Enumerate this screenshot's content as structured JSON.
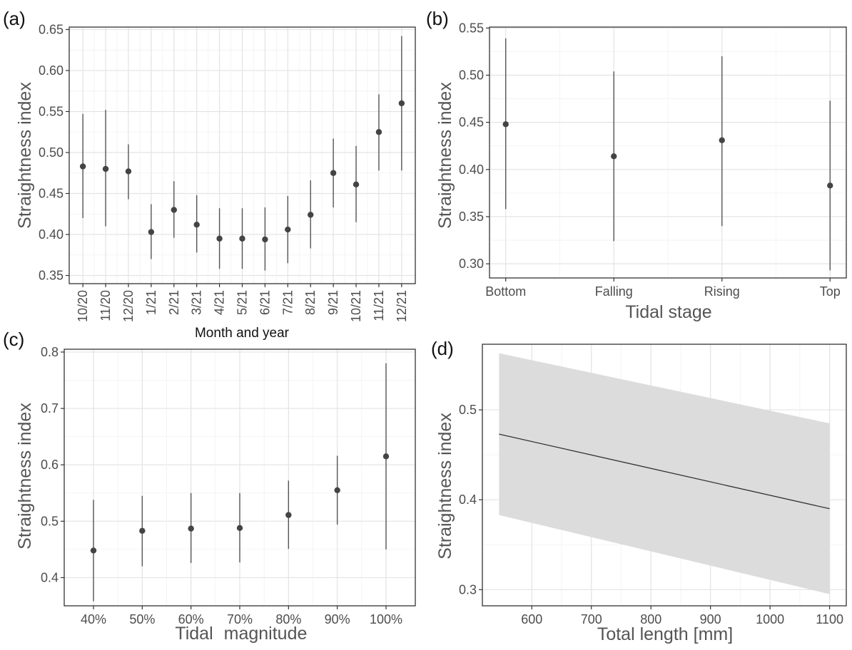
{
  "chart_data": [
    {
      "panel": "(a)",
      "type": "scatter",
      "subtype": "point-errorbar",
      "xlabel": "Month and year",
      "ylabel": "Straightness index",
      "categories": [
        "10/20",
        "11/20",
        "12/20",
        "1/21",
        "2/21",
        "3/21",
        "4/21",
        "5/21",
        "6/21",
        "7/21",
        "8/21",
        "9/21",
        "10/21",
        "11/21",
        "12/21"
      ],
      "values": [
        0.483,
        0.48,
        0.477,
        0.403,
        0.43,
        0.412,
        0.395,
        0.395,
        0.394,
        0.406,
        0.424,
        0.475,
        0.461,
        0.525,
        0.56
      ],
      "lower": [
        0.42,
        0.41,
        0.443,
        0.37,
        0.396,
        0.378,
        0.358,
        0.358,
        0.356,
        0.365,
        0.383,
        0.433,
        0.415,
        0.478,
        0.478
      ],
      "upper": [
        0.547,
        0.552,
        0.51,
        0.437,
        0.465,
        0.448,
        0.432,
        0.432,
        0.433,
        0.447,
        0.466,
        0.517,
        0.508,
        0.571,
        0.642
      ],
      "yticks": [
        0.35,
        0.4,
        0.45,
        0.5,
        0.55,
        0.6,
        0.65
      ],
      "ytick_labels": [
        "0.35",
        "0.40",
        "0.45",
        "0.50",
        "0.55",
        "0.60",
        "0.65"
      ],
      "ylim": [
        0.34,
        0.653
      ],
      "grid": true
    },
    {
      "panel": "(b)",
      "type": "scatter",
      "subtype": "point-errorbar",
      "xlabel": "Tidal stage",
      "ylabel": "Straightness index",
      "categories": [
        "Bottom",
        "Falling",
        "Rising",
        "Top"
      ],
      "values": [
        0.448,
        0.414,
        0.431,
        0.383
      ],
      "lower": [
        0.358,
        0.324,
        0.34,
        0.293
      ],
      "upper": [
        0.539,
        0.504,
        0.52,
        0.473
      ],
      "yticks": [
        0.3,
        0.35,
        0.4,
        0.45,
        0.5,
        0.55
      ],
      "ytick_labels": [
        "0.30",
        "0.35",
        "0.40",
        "0.45",
        "0.50",
        "0.55"
      ],
      "ylim": [
        0.285,
        0.551
      ],
      "grid": true
    },
    {
      "panel": "(c)",
      "type": "scatter",
      "subtype": "point-errorbar",
      "xlabel_parts": [
        "Tidal",
        "magnitude"
      ],
      "ylabel": "Straightness index",
      "categories": [
        "40%",
        "50%",
        "60%",
        "70%",
        "80%",
        "90%",
        "100%"
      ],
      "values": [
        0.448,
        0.483,
        0.487,
        0.488,
        0.511,
        0.555,
        0.615
      ],
      "lower": [
        0.358,
        0.42,
        0.426,
        0.427,
        0.451,
        0.494,
        0.45
      ],
      "upper": [
        0.538,
        0.545,
        0.55,
        0.55,
        0.572,
        0.616,
        0.78
      ],
      "yticks": [
        0.4,
        0.5,
        0.6,
        0.7,
        0.8
      ],
      "ytick_labels": [
        "0.4",
        "0.5",
        "0.6",
        "0.7",
        "0.8"
      ],
      "ylim": [
        0.35,
        0.805
      ],
      "grid": true
    },
    {
      "panel": "(d)",
      "type": "line",
      "subtype": "line-with-ribbon",
      "xlabel": "Total length [mm]",
      "ylabel": "Straightness index",
      "x": [
        545,
        1100
      ],
      "y": [
        0.473,
        0.39
      ],
      "ribbon_lower": [
        0.383,
        0.295
      ],
      "ribbon_upper": [
        0.563,
        0.485
      ],
      "xticks": [
        600,
        700,
        800,
        900,
        1000,
        1100
      ],
      "xtick_labels": [
        "600",
        "700",
        "800",
        "900",
        "1000",
        "1100"
      ],
      "xlim": [
        517,
        1128
      ],
      "yticks": [
        0.3,
        0.4,
        0.5
      ],
      "ytick_labels": [
        "0.3",
        "0.4",
        "0.5"
      ],
      "ylim": [
        0.282,
        0.573
      ],
      "grid": true
    }
  ]
}
